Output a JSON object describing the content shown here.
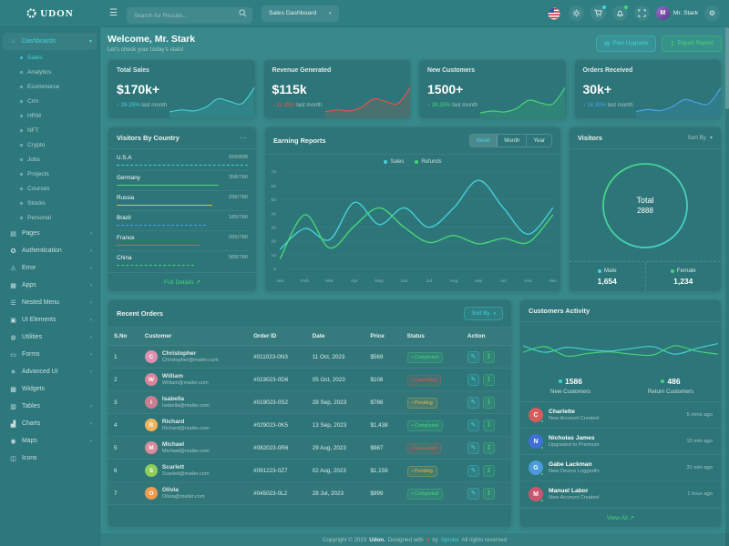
{
  "header": {
    "logo_text": "UDON",
    "search_placeholder": "Search for Results...",
    "dashboard_select": "Sales Dashboard",
    "user_name": "Mr. Stark"
  },
  "welcome": {
    "title": "Welcome, Mr. Stark",
    "subtitle": "Let's check your today's stats!",
    "plan_upgrade_label": "Plan Upgrade",
    "export_report_label": "Export Report"
  },
  "kpis": [
    {
      "title": "Total Sales",
      "value": "$170k+",
      "arrow": "↑",
      "delta": "26.35%",
      "note": "last month",
      "color": "#45d1d8",
      "spark": [
        4,
        6,
        5,
        9,
        18,
        15,
        13,
        30
      ]
    },
    {
      "title": "Revenue Generated",
      "value": "$115k",
      "arrow": "↓",
      "delta": "11.35%",
      "note": "last month",
      "color": "#e6564a",
      "spark": [
        4,
        6,
        5,
        9,
        18,
        15,
        13,
        30
      ]
    },
    {
      "title": "New Customers",
      "value": "1500+",
      "arrow": "↑",
      "delta": "26.35%",
      "note": "last month",
      "color": "#47d579",
      "spark": [
        3,
        5,
        4,
        8,
        17,
        14,
        13,
        31
      ]
    },
    {
      "title": "Orders Received",
      "value": "30k+",
      "arrow": "↑",
      "delta": "16.35%",
      "note": "last month",
      "color": "#4aa3e8",
      "spark": [
        4,
        6,
        5,
        9,
        16,
        13,
        12,
        28
      ]
    }
  ],
  "visitors_by_country": {
    "title": "Visitors By Country",
    "more_icon": "⋯",
    "countries": [
      {
        "name": "U.S.A",
        "value": "559/898",
        "percent": 100,
        "color": "#45d1d8",
        "line": "dashed"
      },
      {
        "name": "Germany",
        "value": "358/786",
        "percent": 78,
        "color": "#47d579",
        "line": "solid"
      },
      {
        "name": "Russia",
        "value": "296/786",
        "percent": 73,
        "color": "#f2b33d",
        "line": "solid"
      },
      {
        "name": "Brazil",
        "value": "185/786",
        "percent": 68,
        "color": "#4aa3e8",
        "line": "dashed"
      },
      {
        "name": "France",
        "value": "095/786",
        "percent": 63,
        "color": "#e6564a",
        "line": "solid"
      },
      {
        "name": "China",
        "value": "068/786",
        "percent": 59,
        "color": "#47d579",
        "line": "dashed"
      }
    ],
    "footer_link": "Full Details"
  },
  "earning_reports": {
    "title": "Earning Reports",
    "tabs": [
      "Week",
      "Month",
      "Year"
    ],
    "active_tab": "Week",
    "chart_data": {
      "type": "line",
      "categories": [
        "Jan",
        "Feb",
        "Mar",
        "Apr",
        "May",
        "Jun",
        "Jul",
        "Aug",
        "sep",
        "oct",
        "nov",
        "dec"
      ],
      "series": [
        {
          "name": "Sales",
          "color": "#45d1d8",
          "values": [
            14,
            29,
            21,
            48,
            32,
            44,
            30,
            44,
            64,
            44,
            25,
            44
          ]
        },
        {
          "name": "Refunds",
          "color": "#47d579",
          "values": [
            7,
            39,
            15,
            31,
            44,
            30,
            19,
            24,
            18,
            22,
            19,
            39
          ]
        }
      ],
      "ylim": [
        0,
        70
      ],
      "yticks": [
        0,
        10,
        20,
        30,
        40,
        50,
        60,
        70
      ],
      "grid": true,
      "legend_position": "top"
    }
  },
  "visitors": {
    "title": "Visitors",
    "sort_label": "Sort By",
    "total_label": "Total",
    "total_value": "2888",
    "legend": [
      {
        "label": "Male",
        "value": "1,654",
        "color": "#45d1d8"
      },
      {
        "label": "Female",
        "value": "1,234",
        "color": "#47d579"
      }
    ]
  },
  "orders": {
    "title": "Recent Orders",
    "sort_label": "Sort By",
    "columns": [
      "S.No",
      "Customer",
      "Order ID",
      "Date",
      "Price",
      "Status",
      "Action"
    ],
    "rows": [
      {
        "sno": "1",
        "customer": "Christopher",
        "email": "Christopher@mailer.com",
        "avatar_color": "#e08fb0",
        "order_id": "#011023-0N3",
        "date": "11 Oct, 2023",
        "price": "$569",
        "status": "Completed",
        "status_type": "success"
      },
      {
        "sno": "2",
        "customer": "William",
        "email": "William@mailer.com",
        "avatar_color": "#d9849b",
        "order_id": "#023023-0D6",
        "date": "05 Oct, 2023",
        "price": "$108",
        "status": "Cancelled",
        "status_type": "danger"
      },
      {
        "sno": "3",
        "customer": "Isabella",
        "email": "Isabella@mailer.com",
        "avatar_color": "#c97f8f",
        "order_id": "#019023-0S2",
        "date": "28 Sep, 2023",
        "price": "$786",
        "status": "Pending",
        "status_type": "warning"
      },
      {
        "sno": "4",
        "customer": "Richard",
        "email": "Richard@mailer.com",
        "avatar_color": "#f0b45c",
        "order_id": "#029023-0K5",
        "date": "13 Sep, 2023",
        "price": "$1,438",
        "status": "Completed",
        "status_type": "success"
      },
      {
        "sno": "5",
        "customer": "Michael",
        "email": "Michael@mailer.com",
        "avatar_color": "#d98b9b",
        "order_id": "#082023-0R6",
        "date": "29 Aug, 2023",
        "price": "$987",
        "status": "Cancelled",
        "status_type": "danger"
      },
      {
        "sno": "6",
        "customer": "Scarlett",
        "email": "Scarlett@mailer.com",
        "avatar_color": "#8fce5a",
        "order_id": "#091223-0Z7",
        "date": "02 Aug, 2023",
        "price": "$1,159",
        "status": "Pending",
        "status_type": "warning"
      },
      {
        "sno": "7",
        "customer": "Olivia",
        "email": "Olivia@mailer.com",
        "avatar_color": "#f09a4e",
        "order_id": "#045023-0L2",
        "date": "28 Jul, 2023",
        "price": "$999",
        "status": "Completed",
        "status_type": "success"
      }
    ]
  },
  "activity": {
    "title": "Customers Activity",
    "stats": [
      {
        "value": "1586",
        "label": "New Customers",
        "color": "#45d1d8"
      },
      {
        "value": "486",
        "label": "Return Customers",
        "color": "#47d579"
      }
    ],
    "chart_data": {
      "type": "line",
      "series": [
        {
          "name": "New Customers",
          "color": "#45d1d8",
          "values": [
            62,
            45,
            58,
            52,
            48,
            55,
            60,
            40,
            55,
            68
          ]
        },
        {
          "name": "Return Customers",
          "color": "#47d579",
          "values": [
            45,
            60,
            35,
            42,
            46,
            40,
            38,
            62,
            48,
            40
          ]
        }
      ]
    },
    "items": [
      {
        "name": "Charlette",
        "detail": "New Account Created",
        "time": "5 mins ago",
        "avatar_color": "#d65b5b"
      },
      {
        "name": "Nicholas James",
        "detail": "Upgraded to Premium",
        "time": "15 min ago",
        "avatar_color": "#3f6fd8"
      },
      {
        "name": "Gabe Lackman",
        "detail": "New Device LoggedIn",
        "time": "31 min ago",
        "avatar_color": "#4a9bdc"
      },
      {
        "name": "Manuel Labor",
        "detail": "New Account Created",
        "time": "1 hour ago",
        "avatar_color": "#c9566e"
      }
    ],
    "view_all": "View All"
  },
  "footer": {
    "copyright": "Copyright © 2023",
    "brand": "Udon.",
    "designed": "Designed with",
    "heart": "♥",
    "by": "by",
    "link": "Spruko",
    "rights": "All rights reserved"
  },
  "sidebar": {
    "items": [
      {
        "type": "parent",
        "label": "Dashboards",
        "icon": "home-icon",
        "glyph": "⌂",
        "chevron": "▾",
        "active": true
      },
      {
        "type": "sub",
        "label": "Sales",
        "active": true
      },
      {
        "type": "sub",
        "label": "Analytics"
      },
      {
        "type": "sub",
        "label": "Ecommerce"
      },
      {
        "type": "sub",
        "label": "Crm"
      },
      {
        "type": "sub",
        "label": "HRM"
      },
      {
        "type": "sub",
        "label": "NFT"
      },
      {
        "type": "sub",
        "label": "Crypto"
      },
      {
        "type": "sub",
        "label": "Jobs"
      },
      {
        "type": "sub",
        "label": "Projects"
      },
      {
        "type": "sub",
        "label": "Courses"
      },
      {
        "type": "sub",
        "label": "Stocks"
      },
      {
        "type": "sub",
        "label": "Personal"
      },
      {
        "type": "parent",
        "label": "Pages",
        "icon": "pages-icon",
        "glyph": "▤",
        "chevron": "›"
      },
      {
        "type": "parent",
        "label": "Authentication",
        "icon": "key-icon",
        "glyph": "✪",
        "chevron": "›"
      },
      {
        "type": "parent",
        "label": "Error",
        "icon": "warning-icon",
        "glyph": "⚠",
        "chevron": "›"
      },
      {
        "type": "parent",
        "label": "Apps",
        "icon": "apps-icon",
        "glyph": "▦",
        "chevron": "›"
      },
      {
        "type": "parent",
        "label": "Nested Menu",
        "icon": "nested-menu-icon",
        "glyph": "☰",
        "chevron": "›"
      },
      {
        "type": "parent",
        "label": "UI Elements",
        "icon": "ui-elements-icon",
        "glyph": "▣",
        "chevron": "›"
      },
      {
        "type": "parent",
        "label": "Utilities",
        "icon": "bulb-icon",
        "glyph": "◍",
        "chevron": "›"
      },
      {
        "type": "parent",
        "label": "Forms",
        "icon": "forms-icon",
        "glyph": "▭",
        "chevron": "›"
      },
      {
        "type": "parent",
        "label": "Advanced UI",
        "icon": "advanced-ui-icon",
        "glyph": "✳",
        "chevron": "›"
      },
      {
        "type": "parent",
        "label": "Widgets",
        "icon": "widgets-icon",
        "glyph": "▩",
        "chevron": ""
      },
      {
        "type": "parent",
        "label": "Tables",
        "icon": "tables-icon",
        "glyph": "▥",
        "chevron": "›"
      },
      {
        "type": "parent",
        "label": "Charts",
        "icon": "charts-icon",
        "glyph": "▟",
        "chevron": "›"
      },
      {
        "type": "parent",
        "label": "Maps",
        "icon": "map-pin-icon",
        "glyph": "◉",
        "chevron": "›"
      },
      {
        "type": "parent",
        "label": "Icons",
        "icon": "icons-icon",
        "glyph": "◫",
        "chevron": ""
      }
    ]
  }
}
